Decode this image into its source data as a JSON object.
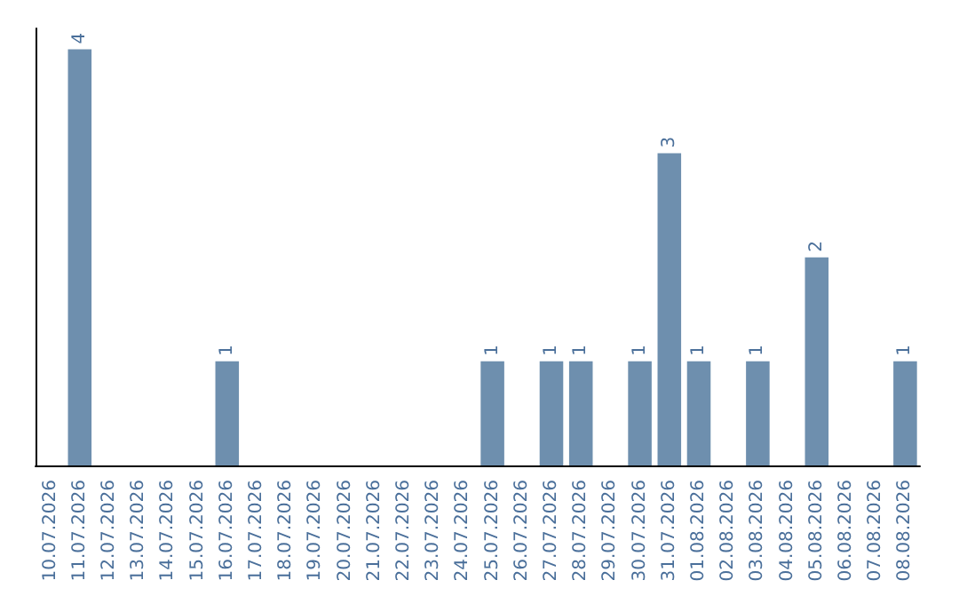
{
  "chart_data": {
    "type": "bar",
    "categories": [
      "10.07.2026",
      "11.07.2026",
      "12.07.2026",
      "13.07.2026",
      "14.07.2026",
      "15.07.2026",
      "16.07.2026",
      "17.07.2026",
      "18.07.2026",
      "19.07.2026",
      "20.07.2026",
      "21.07.2026",
      "22.07.2026",
      "23.07.2026",
      "24.07.2026",
      "25.07.2026",
      "26.07.2026",
      "27.07.2026",
      "28.07.2026",
      "29.07.2026",
      "30.07.2026",
      "31.07.2026",
      "01.08.2026",
      "02.08.2026",
      "03.08.2026",
      "04.08.2026",
      "05.08.2026",
      "06.08.2026",
      "07.08.2026",
      "08.08.2026"
    ],
    "values": [
      0,
      4,
      0,
      0,
      0,
      0,
      1,
      0,
      0,
      0,
      0,
      0,
      0,
      0,
      0,
      1,
      0,
      1,
      1,
      0,
      1,
      3,
      1,
      0,
      1,
      0,
      2,
      0,
      0,
      1
    ],
    "value_labels": [
      null,
      "4",
      null,
      null,
      null,
      null,
      "1",
      null,
      null,
      null,
      null,
      null,
      null,
      null,
      null,
      "1",
      null,
      "1",
      "1",
      null,
      "1",
      "3",
      "1",
      null,
      "1",
      null,
      "2",
      null,
      null,
      "1"
    ],
    "color": "#6e8fae",
    "ylim": [
      0,
      4.2
    ],
    "tick_labels": "x",
    "grid": false
  }
}
